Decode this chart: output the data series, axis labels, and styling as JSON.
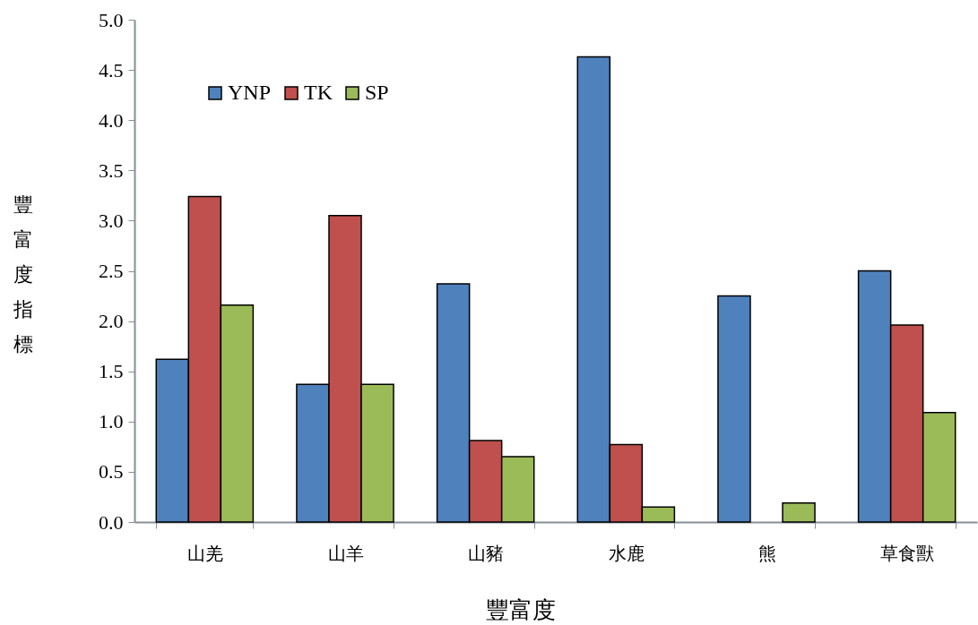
{
  "chart_data": {
    "type": "bar",
    "xlabel": "豐富度",
    "ylabel": "豐富度指標",
    "categories": [
      "山羌",
      "山羊",
      "山豬",
      "水鹿",
      "熊",
      "草食獸"
    ],
    "series": [
      {
        "name": "YNP",
        "color": "#4f81bd",
        "values": [
          1.62,
          1.37,
          2.37,
          4.63,
          2.25,
          2.5
        ]
      },
      {
        "name": "TK",
        "color": "#c0504d",
        "values": [
          3.24,
          3.05,
          0.81,
          0.77,
          null,
          1.96
        ]
      },
      {
        "name": "SP",
        "color": "#9bbb59",
        "values": [
          2.16,
          1.37,
          0.65,
          0.15,
          0.19,
          1.09
        ]
      }
    ],
    "ylim": [
      0,
      5
    ],
    "yticks": [
      {
        "value": 0,
        "label": "0.0"
      },
      0.5,
      {
        "value": 1,
        "label": "1.0"
      },
      1.5,
      {
        "value": 2,
        "label": "2.0"
      },
      2.5,
      {
        "value": 3,
        "label": "3.0"
      },
      3.5,
      {
        "value": 4,
        "label": "4.0"
      },
      4.5,
      {
        "value": 5,
        "label": "5.0"
      }
    ],
    "grid": false,
    "legend": "top left"
  }
}
